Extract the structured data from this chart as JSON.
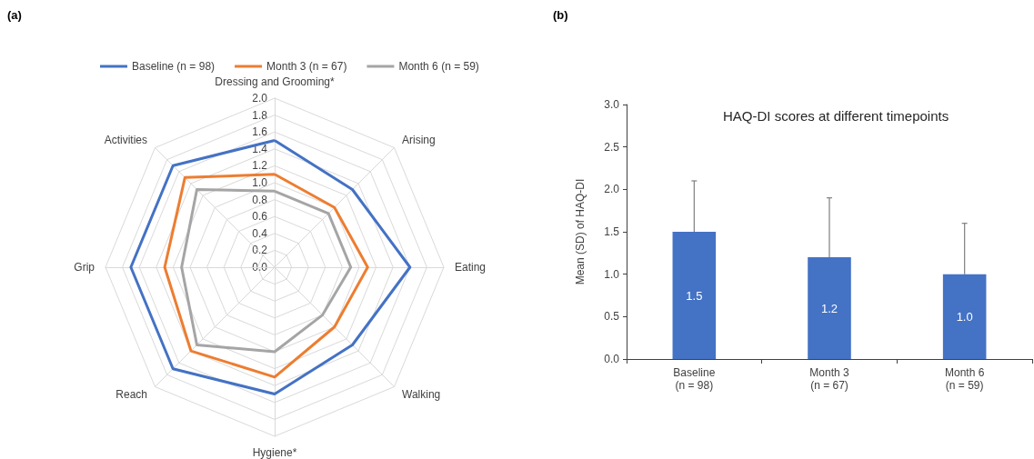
{
  "chart_data": [
    {
      "type": "radar",
      "annotations": [
        "(a)"
      ],
      "categories": [
        "Dressing and Grooming*",
        "Arising",
        "Eating",
        "Walking",
        "Hygiene*",
        "Reach",
        "Grip",
        "Activities"
      ],
      "series": [
        {
          "name": "Baseline (n = 98)",
          "color": "#4472c4",
          "values": [
            1.5,
            1.3,
            1.6,
            1.3,
            1.5,
            1.7,
            1.7,
            1.7
          ]
        },
        {
          "name": "Month 3 (n = 67)",
          "color": "#ed7d31",
          "values": [
            1.1,
            1.0,
            1.1,
            1.0,
            1.3,
            1.4,
            1.3,
            1.5
          ]
        },
        {
          "name": "Month 6 (n = 59)",
          "color": "#a5a5a5",
          "values": [
            0.9,
            0.9,
            0.9,
            0.8,
            1.0,
            1.3,
            1.1,
            1.3
          ]
        }
      ],
      "ylim": [
        0,
        2
      ],
      "yticks": [
        {
          "value": 0,
          "label": "0.0"
        },
        {
          "value": 0.2,
          "label": "0.2"
        },
        {
          "value": 0.4,
          "label": "0.4"
        },
        {
          "value": 0.6,
          "label": "0.6"
        },
        {
          "value": 0.8,
          "label": "0.8"
        },
        {
          "value": 1,
          "label": "1.0"
        },
        {
          "value": 1.2,
          "label": "1.2"
        },
        {
          "value": 1.4,
          "label": "1.4"
        },
        {
          "value": 1.6,
          "label": "1.6"
        },
        {
          "value": 1.8,
          "label": "1.8"
        },
        {
          "value": 2,
          "label": "2.0"
        }
      ],
      "grid": true,
      "legend": "top",
      "marker": "none",
      "line_style": "solid"
    },
    {
      "type": "bar",
      "annotations": [
        "(b)"
      ],
      "title": "HAQ-DI scores at different timepoints",
      "ylabel": "Mean (SD) of HAQ-DI",
      "categories": [
        "Baseline\n(n = 98)",
        "Month 3\n(n = 67)",
        "Month 6\n(n = 59)"
      ],
      "values": [
        1.5,
        1.2,
        1.0
      ],
      "color": "#4472c4",
      "errors": [
        [
          1.5,
          2.1
        ],
        [
          1.2,
          1.9
        ],
        [
          1.0,
          1.6
        ]
      ],
      "value_labels": [
        "1.5",
        "1.2",
        "1.0"
      ],
      "ylim": [
        0,
        3
      ],
      "yticks": [
        {
          "value": 0,
          "label": "0.0"
        },
        {
          "value": 0.5,
          "label": "0.5"
        },
        {
          "value": 1,
          "label": "1.0"
        },
        {
          "value": 1.5,
          "label": "1.5"
        },
        {
          "value": 2,
          "label": "2.0"
        },
        {
          "value": 2.5,
          "label": "2.5"
        },
        {
          "value": 3,
          "label": "3.0"
        }
      ],
      "grid": false
    }
  ]
}
